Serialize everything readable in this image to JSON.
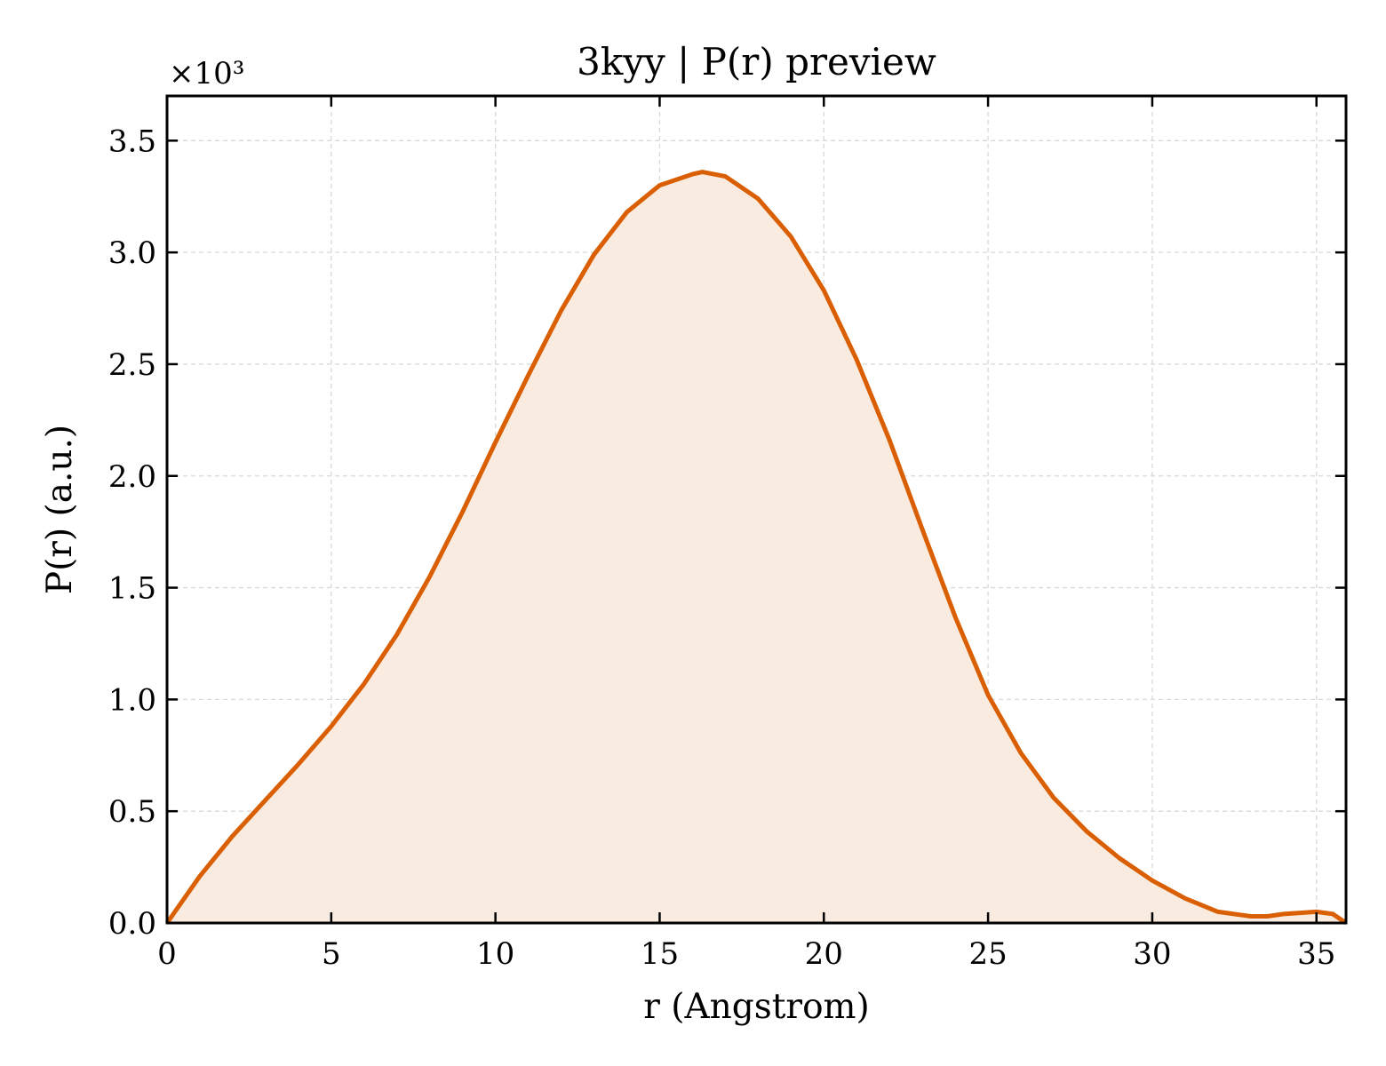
{
  "chart_data": {
    "type": "area",
    "title": "3kyy | P(r) preview",
    "xlabel": "r (Angstrom)",
    "ylabel": "P(r) (a.u.)",
    "y_multiplier_label": "×10³",
    "y_multiplier_value": 1000,
    "xlim": [
      0,
      35.9
    ],
    "ylim": [
      0,
      3.7
    ],
    "x_ticks": [
      0,
      5,
      10,
      15,
      20,
      25,
      30,
      35
    ],
    "x_tick_labels": [
      "0",
      "5",
      "10",
      "15",
      "20",
      "25",
      "30",
      "35"
    ],
    "y_ticks": [
      0,
      0.5,
      1.0,
      1.5,
      2.0,
      2.5,
      3.0,
      3.5
    ],
    "y_tick_labels": [
      "0.0",
      "0.5",
      "1.0",
      "1.5",
      "2.0",
      "2.5",
      "3.0",
      "3.5"
    ],
    "grid": true,
    "legend": "none",
    "line_color": "#d95f02",
    "fill_color": "#f9ebe0",
    "series": [
      {
        "x": [
          0,
          1,
          2,
          3,
          4,
          5,
          6,
          7,
          8,
          9,
          10,
          11,
          12,
          13,
          14,
          15,
          16,
          16.3,
          17,
          18,
          19,
          20,
          21,
          22,
          23,
          24,
          25,
          26,
          27,
          28,
          29,
          30,
          31,
          32,
          33,
          33.5,
          34,
          35,
          35.5,
          35.9
        ],
        "y": [
          0,
          0.21,
          0.39,
          0.55,
          0.71,
          0.88,
          1.07,
          1.29,
          1.55,
          1.84,
          2.15,
          2.45,
          2.74,
          2.99,
          3.18,
          3.3,
          3.35,
          3.36,
          3.34,
          3.24,
          3.07,
          2.83,
          2.52,
          2.16,
          1.76,
          1.37,
          1.02,
          0.76,
          0.56,
          0.41,
          0.29,
          0.19,
          0.11,
          0.05,
          0.03,
          0.03,
          0.04,
          0.05,
          0.04,
          0.0
        ]
      }
    ]
  }
}
